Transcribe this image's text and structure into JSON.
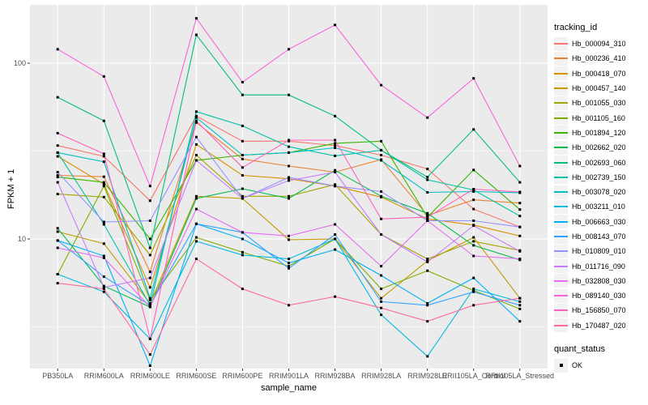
{
  "chart_data": {
    "type": "line",
    "title": "",
    "xlabel": "sample_name",
    "ylabel": "FPKM + 1",
    "y_scale": "log10",
    "y_major_ticks": [
      100,
      10
    ],
    "y_minor_gridlines": [
      31.62,
      3.162
    ],
    "ylim": [
      1.8,
      215
    ],
    "panel_bg": "#EBEBEB",
    "gridline_color": "#FFFFFF",
    "marker_color": "#000000",
    "axis_text_color": "#4D4D4D",
    "legend": {
      "title": "tracking_id",
      "position": "right"
    },
    "quant_legend": {
      "title": "quant_status",
      "items": [
        {
          "label": "OK",
          "marker": "filled-square",
          "color": "#000000"
        }
      ]
    },
    "categories": [
      "PB350LA",
      "RRIM600LA",
      "RRIM600LE",
      "RRIM600SE",
      "RRIM600PE",
      "RRIM901LA",
      "RRIM928BA",
      "RRIM928LA",
      "RRIM928LE",
      "RRII105LA_Control",
      "RRII105LA_Stressed"
    ],
    "series": [
      {
        "name": "Hb_000094_310",
        "color": "#F8766D",
        "values": [
          34,
          29.5,
          16.5,
          50,
          36,
          36,
          34,
          30,
          25,
          14.8,
          11.7
        ]
      },
      {
        "name": "Hb_000236_410",
        "color": "#EA8331",
        "values": [
          23,
          22.6,
          6.5,
          46,
          28.5,
          26,
          24,
          28.3,
          13.6,
          16.7,
          16
        ]
      },
      {
        "name": "Hb_000418_070",
        "color": "#D89000",
        "values": [
          29.5,
          20.5,
          5.3,
          34.5,
          23,
          22,
          20,
          17.3,
          13,
          12,
          10.4
        ]
      },
      {
        "name": "Hb_000457_140",
        "color": "#C49A00",
        "values": [
          11,
          9.4,
          4.3,
          17.5,
          17,
          9.9,
          10,
          4.6,
          7.5,
          10.2,
          4.6
        ]
      },
      {
        "name": "Hb_001055_030",
        "color": "#A3A500",
        "values": [
          18,
          17.3,
          8.1,
          30,
          17.5,
          17.5,
          20.4,
          10.6,
          7.7,
          9.7,
          8.6
        ]
      },
      {
        "name": "Hb_001105_160",
        "color": "#7CAE00",
        "values": [
          6.3,
          20,
          4.5,
          10.2,
          8.4,
          7.0,
          10,
          5.2,
          6.6,
          5.1,
          4.0
        ]
      },
      {
        "name": "Hb_001894_120",
        "color": "#39B600",
        "values": [
          22.5,
          21,
          10,
          28,
          30,
          31,
          35,
          36,
          13.3,
          24.7,
          14.7
        ]
      },
      {
        "name": "Hb_002662_020",
        "color": "#00BB4E",
        "values": [
          11.5,
          5.4,
          4.1,
          17,
          19.3,
          17,
          24.6,
          17.5,
          14,
          9.2,
          7.6
        ]
      },
      {
        "name": "Hb_002693_060",
        "color": "#00BF7D",
        "values": [
          64,
          47,
          8.9,
          145,
          66,
          66,
          50,
          32,
          22.5,
          42,
          21
        ]
      },
      {
        "name": "Hb_002739_150",
        "color": "#00C1A3",
        "values": [
          31,
          12.1,
          4.2,
          53,
          44,
          33.5,
          29.7,
          32,
          21.7,
          19,
          13.5
        ]
      },
      {
        "name": "Hb_003078_020",
        "color": "#00BFC4",
        "values": [
          31,
          27.5,
          4.6,
          49,
          30,
          31,
          33,
          28,
          18.4,
          18.6,
          18.3
        ]
      },
      {
        "name": "Hb_003211_010",
        "color": "#00BAE0",
        "values": [
          6.3,
          5.0,
          2.7,
          9.7,
          8.1,
          7.7,
          10,
          3.7,
          2.15,
          5.2,
          4.4
        ]
      },
      {
        "name": "Hb_006663_030",
        "color": "#00B0F6",
        "values": [
          9.8,
          8.0,
          1.9,
          12.2,
          10,
          7.3,
          8.7,
          6.2,
          4.3,
          6.0,
          3.4
        ]
      },
      {
        "name": "Hb_008143_070",
        "color": "#35A2FF",
        "values": [
          9.8,
          6.1,
          4.2,
          12.2,
          10.9,
          6.8,
          10.6,
          4.4,
          4.2,
          5.0,
          4.2
        ]
      },
      {
        "name": "Hb_010809_010",
        "color": "#9590FF",
        "values": [
          24,
          12.5,
          12.7,
          38,
          17,
          22.4,
          20,
          18.6,
          12.7,
          12.7,
          11.7
        ]
      },
      {
        "name": "Hb_011716_090",
        "color": "#C77CFF",
        "values": [
          21,
          5.3,
          6.0,
          28,
          17,
          21.5,
          24,
          10.6,
          7.4,
          11.9,
          8.5
        ]
      },
      {
        "name": "Hb_032808_030",
        "color": "#E76BF3",
        "values": [
          8.9,
          7.8,
          4.1,
          14.8,
          10.9,
          10.4,
          12.1,
          7.0,
          12.7,
          8.0,
          7.7
        ]
      },
      {
        "name": "Hb_089140_030",
        "color": "#FA62DB",
        "values": [
          120,
          84,
          20,
          180,
          78,
          120,
          165,
          75,
          49,
          82,
          26
        ]
      },
      {
        "name": "Hb_156850_070",
        "color": "#FF62BC",
        "values": [
          40,
          30.5,
          2.7,
          47,
          25.5,
          36.5,
          36.5,
          13,
          13.3,
          19.2,
          18.5
        ]
      },
      {
        "name": "Hb_170487_020",
        "color": "#FF6A98",
        "values": [
          5.6,
          5.2,
          2.2,
          7.7,
          5.2,
          4.2,
          4.7,
          4.05,
          3.4,
          4.2,
          4.6
        ]
      }
    ]
  }
}
